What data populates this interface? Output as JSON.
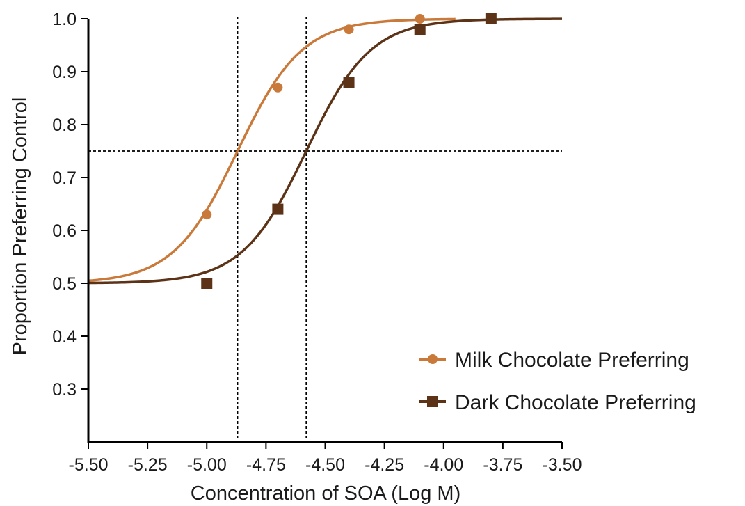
{
  "chart_data": {
    "type": "line",
    "title": "",
    "xlabel": "Concentration of SOA (Log M)",
    "ylabel": "Proportion Preferring Control",
    "xlim": [
      -5.5,
      -3.5
    ],
    "ylim": [
      0.2,
      1.0
    ],
    "x_ticks": [
      -5.5,
      -5.25,
      -5.0,
      -4.75,
      -4.5,
      -4.25,
      -4.0,
      -3.75,
      -3.5
    ],
    "x_tick_labels": [
      "-5.50",
      "-5.25",
      "-5.00",
      "-4.75",
      "-4.50",
      "-4.25",
      "-4.00",
      "-3.75",
      "-3.50"
    ],
    "y_ticks": [
      0.3,
      0.4,
      0.5,
      0.6,
      0.7,
      0.8,
      0.9,
      1.0
    ],
    "y_tick_labels": [
      "0.3",
      "0.4",
      "0.5",
      "0.6",
      "0.7",
      "0.8",
      "0.9",
      "1.0"
    ],
    "grid": false,
    "legend_position": "bottom-right",
    "series": [
      {
        "name": "Milk Chocolate Preferring",
        "color": "#c97a3a",
        "marker": "circle",
        "x": [
          -5.0,
          -4.7,
          -4.4,
          -4.1
        ],
        "y": [
          0.63,
          0.87,
          0.98,
          1.0
        ],
        "fit": {
          "bottom": 0.5,
          "top": 1.0,
          "logEC50": -4.87,
          "slope": 3.2,
          "x_range": [
            -5.5,
            -3.95
          ]
        }
      },
      {
        "name": "Dark Chocolate Preferring",
        "color": "#5c3317",
        "marker": "square",
        "x": [
          -5.0,
          -4.7,
          -4.4,
          -4.1,
          -3.8
        ],
        "y": [
          0.5,
          0.64,
          0.88,
          0.98,
          1.0
        ],
        "fit": {
          "bottom": 0.5,
          "top": 1.0,
          "logEC50": -4.58,
          "slope": 3.2,
          "x_range": [
            -5.5,
            -3.5
          ]
        }
      }
    ],
    "reference_lines": [
      {
        "orientation": "horizontal",
        "value": 0.75
      },
      {
        "orientation": "vertical",
        "value": -4.87
      },
      {
        "orientation": "vertical",
        "value": -4.58
      }
    ]
  }
}
